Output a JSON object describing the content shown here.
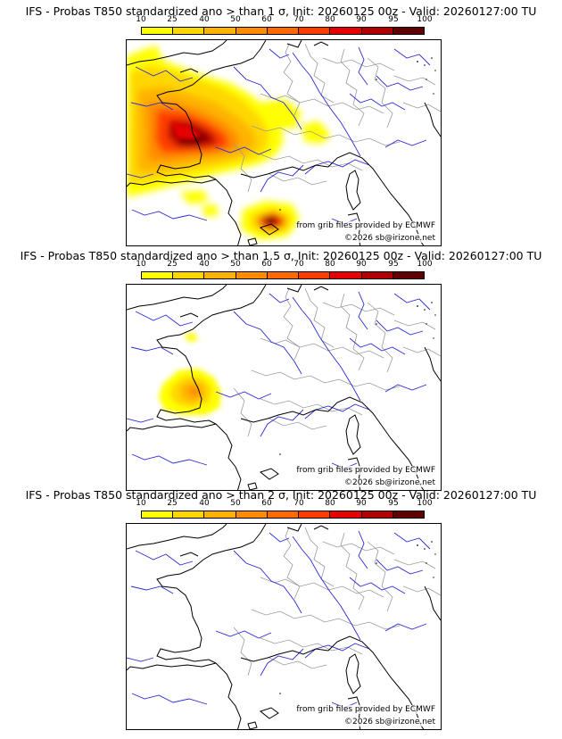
{
  "panels": [
    {
      "title": "IFS - Probas T850  standardized ano > than 1 σ, Init: 20260125 00z - Valid: 20260127:00 TU",
      "threshold": "1 σ",
      "credit_source": "from grib files provided by ECMWF",
      "credit_copyright": "©2026 sb@irizone.net"
    },
    {
      "title": "IFS - Probas T850  standardized ano > than 1.5 σ, Init: 20260125 00z - Valid: 20260127:00 TU",
      "threshold": "1.5 σ",
      "credit_source": "from grib files provided by ECMWF",
      "credit_copyright": "©2026 sb@irizone.net"
    },
    {
      "title": "IFS - Probas T850  standardized ano > than 2 σ, Init: 20260125 00z - Valid: 20260127:00 TU",
      "threshold": "2 σ",
      "credit_source": "from grib files provided by ECMWF",
      "credit_copyright": "©2026 sb@irizone.net"
    }
  ],
  "colorbar": {
    "ticks": [
      "10",
      "25",
      "40",
      "50",
      "60",
      "70",
      "80",
      "90",
      "95",
      "100"
    ],
    "colors": [
      "#ffff00",
      "#ffd700",
      "#ffb300",
      "#ff8c00",
      "#ff6a00",
      "#ff3c00",
      "#e60000",
      "#b00000",
      "#600000"
    ]
  },
  "map_colors": {
    "coast": "#000000",
    "rivers": "#2b2bd6",
    "borders": "#9a9a9a"
  }
}
